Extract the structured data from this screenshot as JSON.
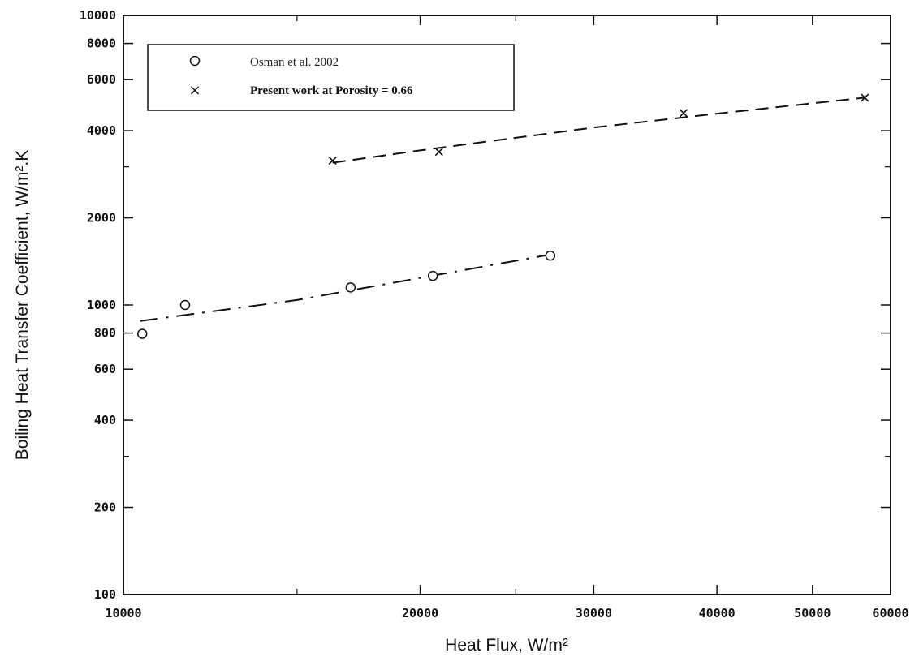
{
  "chart_data": {
    "type": "scatter",
    "x_scale": "log",
    "y_scale": "log",
    "xlabel": "Heat Flux, W/m²",
    "ylabel": "Boiling Heat Transfer Coefficient, W/m².K",
    "xlim": [
      10000,
      60000
    ],
    "ylim": [
      100,
      10000
    ],
    "x_ticks": [
      10000,
      20000,
      30000,
      40000,
      50000,
      60000
    ],
    "x_tick_labels": [
      "10000",
      "20000",
      "30000",
      "40000",
      "50000",
      "60000"
    ],
    "y_ticks": [
      100,
      200,
      400,
      600,
      800,
      1000,
      2000,
      4000,
      6000,
      8000,
      10000
    ],
    "y_tick_labels": [
      "100",
      "200",
      "400",
      "600",
      "800",
      "1000",
      "2000",
      "4000",
      "6000",
      "8000",
      "10000"
    ],
    "grid": false,
    "legend_position": "top-left",
    "series": [
      {
        "name": "Osman et al. 2002",
        "marker": "circle",
        "line_style": "dash-dot",
        "color": "#111111",
        "x": [
          10450,
          11550,
          17000,
          20600,
          27100
        ],
        "y": [
          795,
          1000,
          1150,
          1260,
          1480
        ],
        "fit": [
          [
            10400,
            880
          ],
          [
            15000,
            1040
          ],
          [
            20000,
            1240
          ],
          [
            27000,
            1490
          ]
        ]
      },
      {
        "name": "Present work at Porosity = 0.66",
        "marker": "x",
        "line_style": "dashed",
        "color": "#111111",
        "x": [
          16300,
          20900,
          37000,
          56500
        ],
        "y": [
          3150,
          3380,
          4600,
          5200
        ],
        "fit": [
          [
            16300,
            3100
          ],
          [
            20000,
            3420
          ],
          [
            30000,
            4100
          ],
          [
            40000,
            4580
          ],
          [
            56500,
            5200
          ]
        ]
      }
    ]
  }
}
